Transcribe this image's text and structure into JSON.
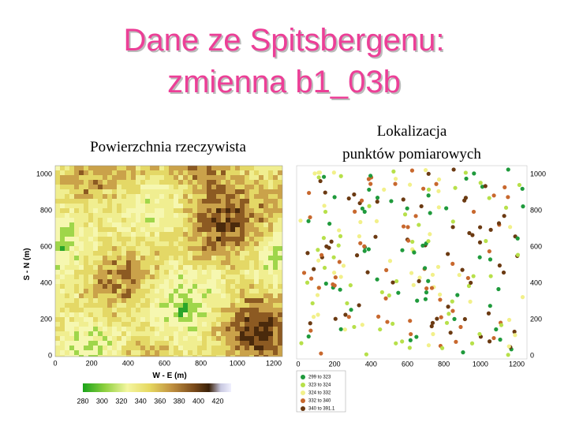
{
  "title": {
    "lines": [
      "Dane ze Spitsbergenu:",
      "zmienna b1_03b"
    ]
  },
  "left_panel": {
    "subtitle": "Powierzchnia rzeczywista",
    "x_axis_label": "W - E (m)",
    "y_axis_label": "S - N (m)",
    "xticks": [
      0,
      200,
      400,
      600,
      800,
      1000,
      1200
    ],
    "yticks": [
      0,
      200,
      400,
      600,
      800,
      1000
    ],
    "colorbar_ticks": [
      280,
      300,
      320,
      340,
      360,
      380,
      400,
      420
    ]
  },
  "right_panel": {
    "subtitle_lines": [
      "Lokalizacja",
      "punktów pomiarowych"
    ],
    "xticks": [
      0,
      200,
      400,
      600,
      800,
      1000,
      1200
    ],
    "yticks": [
      0,
      200,
      400,
      600,
      800,
      1000
    ],
    "legend": [
      {
        "label": "299 to 323",
        "color": "#1f9a3c"
      },
      {
        "label": "323 to 324",
        "color": "#b7e04a"
      },
      {
        "label": "324 to 332",
        "color": "#f2f08a"
      },
      {
        "label": "332 to 340",
        "color": "#c8682e"
      },
      {
        "label": "340 to 391.1",
        "color": "#6b3a12"
      }
    ]
  }
}
